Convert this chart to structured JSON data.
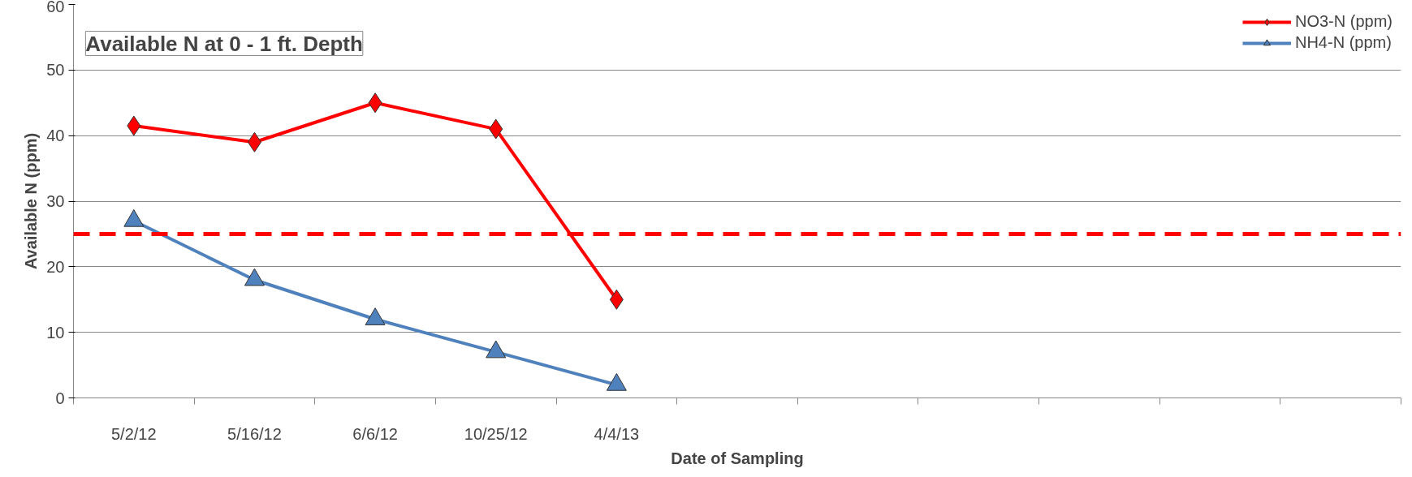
{
  "chart_data": {
    "type": "line",
    "title": "Available N at 0 - 1 ft. Depth",
    "xlabel": "Date of Sampling",
    "ylabel": "Available N (ppm)",
    "categories": [
      "5/2/12",
      "5/16/12",
      "6/6/12",
      "10/25/12",
      "4/4/13",
      null,
      null,
      null,
      null,
      null,
      null
    ],
    "series": [
      {
        "name": "NO3-N (ppm)",
        "color": "#ff0000",
        "marker": "diamond",
        "values": [
          41.5,
          39,
          45,
          41,
          15,
          null,
          null,
          null,
          null,
          null,
          null
        ]
      },
      {
        "name": "NH4-N (ppm)",
        "color": "#4f81bd",
        "marker": "triangle",
        "values": [
          27,
          18,
          12,
          7,
          2,
          null,
          null,
          null,
          null,
          null,
          null
        ]
      }
    ],
    "ylim": [
      0,
      60
    ],
    "yticks": [
      0,
      10,
      20,
      30,
      40,
      50,
      60
    ],
    "grid": "y",
    "legend": "top right",
    "ref_lines": [
      {
        "axis": "y",
        "value": 25,
        "color": "#ff0000",
        "line_style": "dashed"
      }
    ]
  }
}
